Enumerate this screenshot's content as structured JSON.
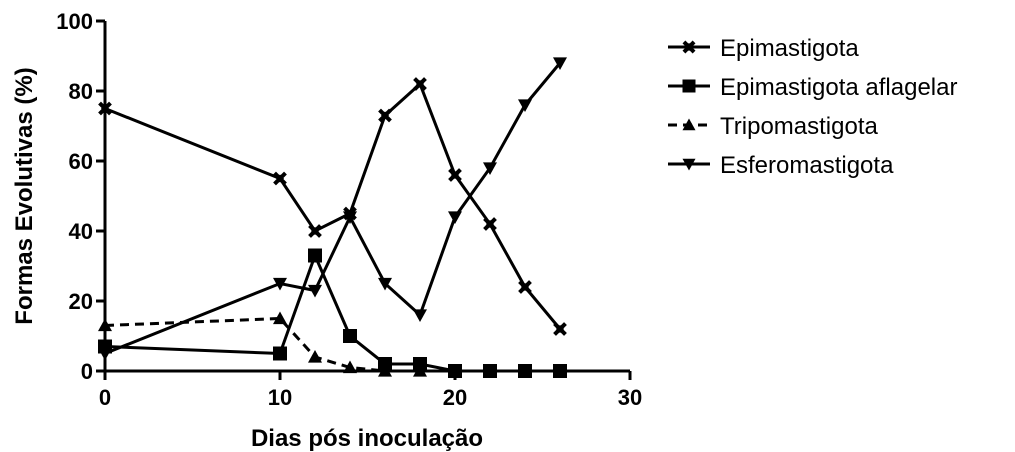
{
  "chart_data": {
    "type": "line",
    "xlabel": "Dias pós inoculação",
    "ylabel": "Formas Evolutivas (%)",
    "xlim": [
      0,
      30
    ],
    "ylim": [
      0,
      100
    ],
    "xticks": [
      "0",
      "10",
      "20",
      "30"
    ],
    "yticks": [
      "0",
      "20",
      "40",
      "60",
      "80",
      "100"
    ],
    "grid": false,
    "legend_position": "right",
    "series": [
      {
        "name": "Epimastigota",
        "marker": "x-diamond",
        "dashed": false,
        "x": [
          0,
          10,
          12,
          14,
          16,
          18,
          20,
          22,
          24,
          26
        ],
        "y": [
          75,
          55,
          40,
          45,
          73,
          82,
          56,
          42,
          24,
          12
        ]
      },
      {
        "name": "Epimastigota aflagelar",
        "marker": "square",
        "dashed": false,
        "x": [
          0,
          10,
          12,
          14,
          16,
          18,
          20,
          22,
          24,
          26
        ],
        "y": [
          7,
          5,
          33,
          10,
          2,
          2,
          0,
          0,
          0,
          0
        ]
      },
      {
        "name": "Tripomastigota",
        "marker": "triangle-up",
        "dashed": true,
        "x": [
          0,
          10,
          12,
          14,
          16,
          18
        ],
        "y": [
          13,
          15,
          4,
          1,
          0,
          0
        ]
      },
      {
        "name": "Esferomastigota",
        "marker": "triangle-down",
        "dashed": false,
        "x": [
          0,
          10,
          12,
          14,
          16,
          18,
          20,
          22,
          24,
          26
        ],
        "y": [
          5,
          25,
          23,
          44,
          25,
          16,
          44,
          58,
          76,
          88
        ]
      }
    ]
  }
}
